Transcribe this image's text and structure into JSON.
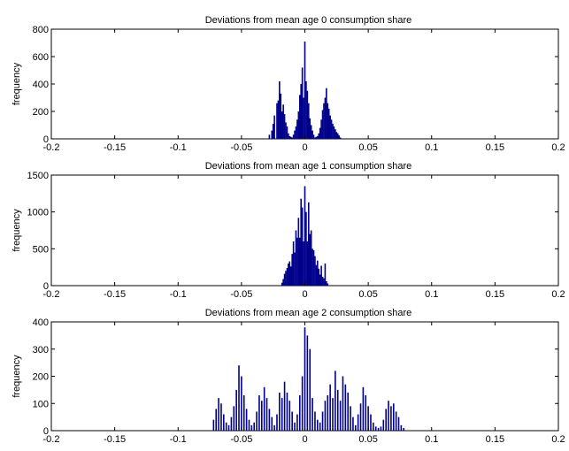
{
  "chart_data": [
    {
      "type": "bar",
      "title": "Deviations from mean age 0 consumption share",
      "ylabel": "frequency",
      "xlabel": "",
      "xlim": [
        -0.2,
        0.2
      ],
      "ylim": [
        0,
        800
      ],
      "xticks": [
        -0.2,
        -0.15,
        -0.1,
        -0.05,
        0,
        0.05,
        0.1,
        0.15,
        0.2
      ],
      "xtick_labels": [
        "-0.2",
        "-0.15",
        "-0.1",
        "-0.05",
        "0",
        "0.05",
        "0.1",
        "0.15",
        "0.2"
      ],
      "yticks": [
        0,
        200,
        400,
        600,
        800
      ],
      "ytick_labels": [
        "0",
        "200",
        "400",
        "600",
        "800"
      ],
      "grid": false,
      "bar_color": "#00008b",
      "x": [
        -0.028,
        -0.026,
        -0.025,
        -0.024,
        -0.022,
        -0.021,
        -0.02,
        -0.019,
        -0.018,
        -0.017,
        -0.016,
        -0.015,
        -0.014,
        -0.013,
        -0.012,
        -0.011,
        -0.01,
        -0.009,
        -0.008,
        -0.007,
        -0.006,
        -0.005,
        -0.004,
        -0.003,
        -0.002,
        -0.001,
        0,
        0.001,
        0.002,
        0.003,
        0.004,
        0.005,
        0.006,
        0.007,
        0.008,
        0.009,
        0.01,
        0.011,
        0.012,
        0.013,
        0.014,
        0.015,
        0.016,
        0.017,
        0.018,
        0.019,
        0.02,
        0.021,
        0.022,
        0.023,
        0.024,
        0.025,
        0.026,
        0.027,
        0.028
      ],
      "values": [
        30,
        60,
        110,
        170,
        260,
        280,
        420,
        330,
        200,
        250,
        180,
        120,
        90,
        40,
        20,
        15,
        10,
        30,
        60,
        90,
        140,
        200,
        320,
        400,
        520,
        300,
        710,
        420,
        350,
        260,
        150,
        100,
        60,
        30,
        10,
        15,
        20,
        40,
        80,
        140,
        210,
        260,
        300,
        370,
        260,
        220,
        170,
        140,
        110,
        90,
        70,
        50,
        40,
        25,
        10
      ]
    },
    {
      "type": "bar",
      "title": "Deviations from mean age 1 consumption share",
      "ylabel": "frequency",
      "xlabel": "",
      "xlim": [
        -0.2,
        0.2
      ],
      "ylim": [
        0,
        1500
      ],
      "xticks": [
        -0.2,
        -0.15,
        -0.1,
        -0.05,
        0,
        0.05,
        0.1,
        0.15,
        0.2
      ],
      "xtick_labels": [
        "-0.2",
        "-0.15",
        "-0.1",
        "-0.05",
        "0",
        "0.05",
        "0.1",
        "0.15",
        "0.2"
      ],
      "yticks": [
        0,
        500,
        1000,
        1500
      ],
      "ytick_labels": [
        "0",
        "500",
        "1000",
        "1500"
      ],
      "grid": false,
      "bar_color": "#00008b",
      "x": [
        -0.018,
        -0.017,
        -0.016,
        -0.015,
        -0.014,
        -0.013,
        -0.012,
        -0.011,
        -0.01,
        -0.009,
        -0.008,
        -0.007,
        -0.006,
        -0.005,
        -0.004,
        -0.003,
        -0.002,
        -0.001,
        0,
        0.001,
        0.002,
        0.003,
        0.004,
        0.005,
        0.006,
        0.007,
        0.008,
        0.009,
        0.01,
        0.011,
        0.012,
        0.013,
        0.014,
        0.015,
        0.016,
        0.017,
        0.018
      ],
      "values": [
        40,
        90,
        160,
        200,
        240,
        300,
        330,
        260,
        430,
        600,
        450,
        750,
        650,
        920,
        650,
        1180,
        1060,
        600,
        1350,
        1000,
        600,
        1130,
        700,
        750,
        500,
        480,
        400,
        280,
        340,
        230,
        150,
        270,
        120,
        100,
        300,
        60,
        30
      ]
    },
    {
      "type": "bar",
      "title": "Deviations from mean age 2 consumption share",
      "ylabel": "frequency",
      "xlabel": "",
      "xlim": [
        -0.2,
        0.2
      ],
      "ylim": [
        0,
        400
      ],
      "xticks": [
        -0.2,
        -0.15,
        -0.1,
        -0.05,
        0,
        0.05,
        0.1,
        0.15,
        0.2
      ],
      "xtick_labels": [
        "-0.2",
        "-0.15",
        "-0.1",
        "-0.05",
        "0",
        "0.05",
        "0.1",
        "0.15",
        "0.2"
      ],
      "yticks": [
        0,
        100,
        200,
        300,
        400
      ],
      "ytick_labels": [
        "0",
        "100",
        "200",
        "300",
        "400"
      ],
      "grid": false,
      "bar_color": "#00008b",
      "x": [
        -0.072,
        -0.07,
        -0.068,
        -0.066,
        -0.064,
        -0.062,
        -0.06,
        -0.058,
        -0.056,
        -0.054,
        -0.052,
        -0.05,
        -0.048,
        -0.046,
        -0.044,
        -0.042,
        -0.04,
        -0.038,
        -0.036,
        -0.034,
        -0.032,
        -0.03,
        -0.028,
        -0.026,
        -0.024,
        -0.022,
        -0.02,
        -0.018,
        -0.016,
        -0.014,
        -0.012,
        -0.01,
        -0.008,
        -0.006,
        -0.004,
        -0.002,
        0,
        0.002,
        0.004,
        0.006,
        0.008,
        0.01,
        0.012,
        0.014,
        0.016,
        0.018,
        0.02,
        0.022,
        0.024,
        0.026,
        0.028,
        0.03,
        0.032,
        0.034,
        0.036,
        0.038,
        0.04,
        0.042,
        0.044,
        0.046,
        0.048,
        0.05,
        0.052,
        0.054,
        0.056,
        0.058,
        0.06,
        0.062,
        0.064,
        0.066,
        0.068,
        0.07,
        0.072,
        0.074,
        0.076,
        0.078
      ],
      "values": [
        40,
        80,
        120,
        100,
        60,
        30,
        20,
        50,
        90,
        150,
        240,
        200,
        130,
        80,
        40,
        20,
        30,
        70,
        130,
        110,
        160,
        120,
        80,
        50,
        20,
        60,
        140,
        120,
        180,
        140,
        110,
        70,
        30,
        60,
        130,
        200,
        380,
        350,
        300,
        120,
        70,
        40,
        30,
        70,
        110,
        130,
        170,
        120,
        220,
        150,
        110,
        200,
        170,
        140,
        90,
        50,
        20,
        60,
        100,
        160,
        130,
        90,
        60,
        30,
        15,
        10,
        15,
        40,
        80,
        110,
        90,
        100,
        70,
        50,
        20,
        10
      ]
    }
  ]
}
